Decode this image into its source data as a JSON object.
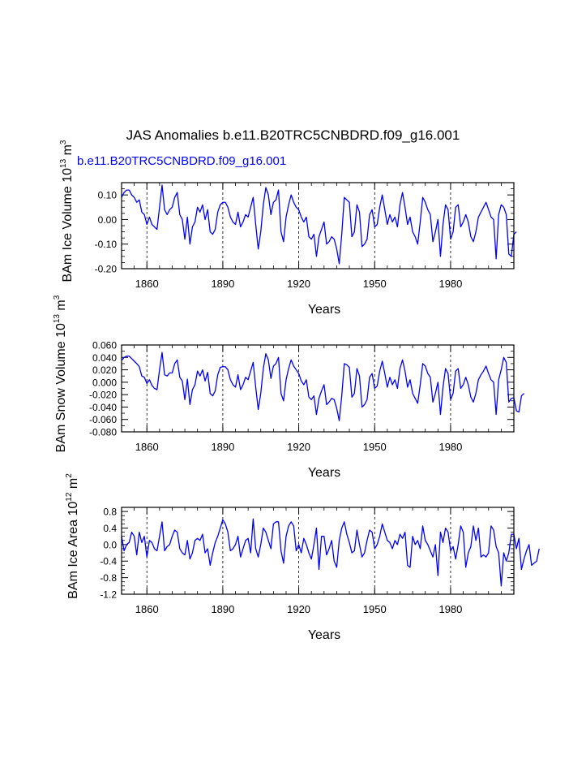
{
  "page": {
    "title": "JAS Anomalies b.e11.B20TRC5CNBDRD.f09_g16.001",
    "subtitle": "b.e11.B20TRC5CNBDRD.f09_g16.001"
  },
  "colors": {
    "line": "#0000ff",
    "axis": "#000000",
    "subtitle": "#0000ff"
  },
  "chart_data": [
    {
      "type": "line",
      "ylabel": "BAm Ice Volume 10^13 m^3",
      "ylabel_main": "BAm Ice Volume 10",
      "ylabel_exp1": "13",
      "ylabel_mid": " m",
      "ylabel_exp2": "3",
      "xlabel": "Years",
      "xlim": [
        1850,
        2005
      ],
      "ylim": [
        -0.2,
        0.15
      ],
      "yticks": [
        -0.2,
        -0.1,
        0.0,
        0.1
      ],
      "ytick_labels": [
        "-0.20",
        "-0.10",
        "0.00",
        "0.10"
      ],
      "yminor_step": 0.025,
      "xticks": [
        1860,
        1890,
        1920,
        1950,
        1980
      ],
      "xtick_labels": [
        "1860",
        "1890",
        "1920",
        "1950",
        "1980"
      ],
      "grid_x": [
        1860,
        1890,
        1920,
        1950,
        1980
      ],
      "x_start": 1850,
      "values": [
        0.09,
        0.11,
        0.12,
        0.12,
        0.1,
        0.09,
        0.07,
        0.08,
        0.03,
        0.02,
        -0.02,
        0.01,
        -0.02,
        -0.03,
        -0.04,
        0.05,
        0.14,
        0.04,
        0.02,
        0.04,
        0.05,
        0.09,
        0.11,
        0.02,
        0.0,
        -0.08,
        0.01,
        -0.1,
        -0.03,
        -0.01,
        0.05,
        0.03,
        0.06,
        0.0,
        0.04,
        -0.05,
        -0.06,
        -0.04,
        0.03,
        0.06,
        0.07,
        0.07,
        0.05,
        0.01,
        -0.01,
        -0.02,
        0.03,
        -0.03,
        -0.01,
        0.02,
        0.01,
        0.05,
        0.09,
        -0.02,
        -0.12,
        -0.05,
        0.06,
        0.13,
        0.1,
        0.02,
        0.07,
        0.08,
        0.12,
        -0.05,
        -0.09,
        0.01,
        0.06,
        0.1,
        0.07,
        0.05,
        0.04,
        0.01,
        -0.01,
        0.01,
        -0.07,
        -0.08,
        -0.06,
        -0.15,
        -0.07,
        -0.04,
        -0.01,
        -0.1,
        -0.09,
        -0.07,
        -0.08,
        -0.12,
        -0.18,
        -0.06,
        0.09,
        0.08,
        0.07,
        -0.07,
        -0.05,
        0.06,
        0.03,
        -0.11,
        -0.1,
        -0.08,
        0.02,
        0.04,
        -0.03,
        -0.02,
        0.05,
        0.1,
        0.04,
        -0.02,
        0.02,
        -0.01,
        0.01,
        -0.03,
        0.06,
        0.11,
        0.05,
        -0.02,
        0.01,
        -0.05,
        -0.07,
        -0.1,
        -0.01,
        0.09,
        0.07,
        0.04,
        0.02,
        -0.09,
        -0.05,
        0.0,
        -0.15,
        -0.02,
        0.06,
        0.04,
        -0.08,
        -0.05,
        0.05,
        0.06,
        -0.03,
        -0.01,
        0.02,
        -0.01,
        -0.07,
        -0.09,
        -0.05,
        0.01,
        0.03,
        0.05,
        0.07,
        0.04,
        0.01,
        0.0,
        -0.16,
        0.02,
        0.06,
        0.05,
        0.02,
        -0.14,
        -0.15,
        -0.06,
        -0.05
      ]
    },
    {
      "type": "line",
      "ylabel": "BAm Snow Volume 10^13 m^3",
      "ylabel_main": "BAm Snow Volume 10",
      "ylabel_exp1": "13",
      "ylabel_mid": " m",
      "ylabel_exp2": "3",
      "xlabel": "Years",
      "xlim": [
        1850,
        2005
      ],
      "ylim": [
        -0.08,
        0.06
      ],
      "yticks": [
        -0.08,
        -0.06,
        -0.04,
        -0.02,
        0.0,
        0.02,
        0.04,
        0.06
      ],
      "ytick_labels": [
        "-0.080",
        "-0.060",
        "-0.040",
        "-0.020",
        "0.000",
        "0.020",
        "0.040",
        "0.060"
      ],
      "yminor_step": 0.01,
      "xticks": [
        1860,
        1890,
        1920,
        1950,
        1980
      ],
      "xtick_labels": [
        "1860",
        "1890",
        "1920",
        "1950",
        "1980"
      ],
      "grid_x": [
        1860,
        1890,
        1920,
        1950,
        1980
      ],
      "x_start": 1850,
      "values": [
        0.035,
        0.04,
        0.042,
        0.042,
        0.038,
        0.034,
        0.03,
        0.025,
        0.01,
        0.008,
        -0.002,
        0.004,
        -0.005,
        -0.01,
        -0.012,
        0.02,
        0.048,
        0.012,
        0.01,
        0.015,
        0.015,
        0.03,
        0.036,
        0.008,
        0.002,
        -0.028,
        0.005,
        -0.036,
        -0.012,
        -0.004,
        0.018,
        0.01,
        0.02,
        0.002,
        0.016,
        -0.018,
        -0.022,
        -0.014,
        0.012,
        0.024,
        0.025,
        0.025,
        0.02,
        0.004,
        -0.004,
        -0.008,
        0.012,
        -0.012,
        -0.004,
        0.008,
        0.004,
        0.018,
        0.032,
        -0.008,
        -0.044,
        -0.018,
        0.022,
        0.046,
        0.036,
        0.006,
        0.026,
        0.03,
        0.04,
        -0.018,
        -0.03,
        0.004,
        0.022,
        0.036,
        0.026,
        0.02,
        0.014,
        0.002,
        -0.004,
        0.004,
        -0.024,
        -0.028,
        -0.022,
        -0.052,
        -0.026,
        -0.014,
        -0.004,
        -0.036,
        -0.032,
        -0.026,
        -0.028,
        -0.042,
        -0.062,
        -0.022,
        0.03,
        0.028,
        0.024,
        -0.024,
        -0.018,
        0.022,
        0.01,
        -0.04,
        -0.036,
        -0.028,
        0.008,
        0.014,
        -0.01,
        -0.006,
        0.018,
        0.034,
        0.014,
        -0.008,
        0.008,
        -0.004,
        0.004,
        -0.01,
        0.022,
        0.036,
        0.018,
        -0.008,
        0.004,
        -0.018,
        -0.026,
        -0.034,
        -0.004,
        0.03,
        0.026,
        0.014,
        0.008,
        -0.032,
        -0.018,
        0.0,
        -0.052,
        -0.008,
        0.022,
        0.014,
        -0.028,
        -0.018,
        0.018,
        0.022,
        -0.01,
        -0.004,
        0.008,
        -0.004,
        -0.024,
        -0.032,
        -0.018,
        0.004,
        0.012,
        0.018,
        0.026,
        0.014,
        0.004,
        0.0,
        -0.052,
        0.004,
        0.02,
        0.04,
        0.032,
        -0.032,
        -0.026,
        -0.025,
        -0.046,
        -0.048,
        -0.022,
        -0.018
      ]
    },
    {
      "type": "line",
      "ylabel": "BAm Ice Area 10^12 m^2",
      "ylabel_main": "BAm Ice Area 10",
      "ylabel_exp1": "12",
      "ylabel_mid": " m",
      "ylabel_exp2": "2",
      "xlabel": "Years",
      "xlim": [
        1850,
        2005
      ],
      "ylim": [
        -1.2,
        0.9
      ],
      "yticks": [
        -1.2,
        -0.8,
        -0.4,
        0.0,
        0.4,
        0.8
      ],
      "ytick_labels": [
        "-1.2",
        "-0.8",
        "-0.4",
        "0.0",
        "0.4",
        "0.8"
      ],
      "yminor_step": 0.1,
      "xticks": [
        1860,
        1890,
        1920,
        1950,
        1980
      ],
      "xtick_labels": [
        "1860",
        "1890",
        "1920",
        "1950",
        "1980"
      ],
      "grid_x": [
        1860,
        1890,
        1920,
        1950,
        1980
      ],
      "x_start": 1850,
      "values": [
        0.2,
        -0.15,
        0.0,
        0.05,
        0.3,
        0.2,
        -0.25,
        0.3,
        0.05,
        0.2,
        -0.3,
        0.1,
        0.05,
        -0.1,
        -0.15,
        0.2,
        0.55,
        -0.15,
        -0.05,
        0.0,
        0.2,
        0.35,
        0.3,
        -0.1,
        -0.2,
        -0.25,
        0.1,
        -0.35,
        -0.2,
        0.1,
        0.15,
        0.1,
        0.25,
        -0.2,
        -0.1,
        -0.5,
        -0.2,
        0.05,
        0.2,
        0.4,
        0.6,
        0.5,
        0.3,
        -0.15,
        -0.1,
        0.0,
        0.2,
        -0.3,
        -0.1,
        0.1,
        0.15,
        -0.2,
        0.62,
        -0.1,
        -0.3,
        0.0,
        0.4,
        0.3,
        0.1,
        -0.1,
        0.5,
        0.55,
        0.55,
        -0.15,
        -0.45,
        0.2,
        0.45,
        0.55,
        0.45,
        -0.15,
        0.0,
        -0.2,
        0.15,
        0.0,
        -0.2,
        -0.35,
        0.0,
        0.4,
        -0.6,
        0.2,
        0.2,
        -0.25,
        -0.1,
        0.1,
        -0.4,
        -0.55,
        0.1,
        0.4,
        0.55,
        0.25,
        0.05,
        -0.2,
        -0.15,
        0.35,
        0.0,
        -0.3,
        -0.2,
        0.1,
        0.35,
        0.3,
        -0.1,
        0.0,
        0.2,
        0.5,
        0.3,
        0.1,
        0.05,
        -0.1,
        0.1,
        0.0,
        0.25,
        0.15,
        0.3,
        -0.5,
        -0.55,
        0.2,
        0.0,
        0.1,
        -0.1,
        0.45,
        0.1,
        0.0,
        -0.15,
        -0.3,
        0.0,
        -0.75,
        0.3,
        0.05,
        0.4,
        0.3,
        -0.15,
        -0.05,
        -0.35,
        0.0,
        0.45,
        0.3,
        -0.55,
        -0.2,
        -0.05,
        0.45,
        0.1,
        0.4,
        -0.3,
        -0.25,
        -0.3,
        -0.2,
        0.45,
        0.35,
        -0.05,
        -0.2,
        -1.0,
        -0.2,
        -0.4,
        -0.2,
        0.25,
        0.25,
        -0.1,
        0.15,
        -0.6,
        -0.35,
        -0.15,
        0.0,
        -0.5,
        -0.45,
        -0.4,
        -0.1
      ]
    }
  ]
}
